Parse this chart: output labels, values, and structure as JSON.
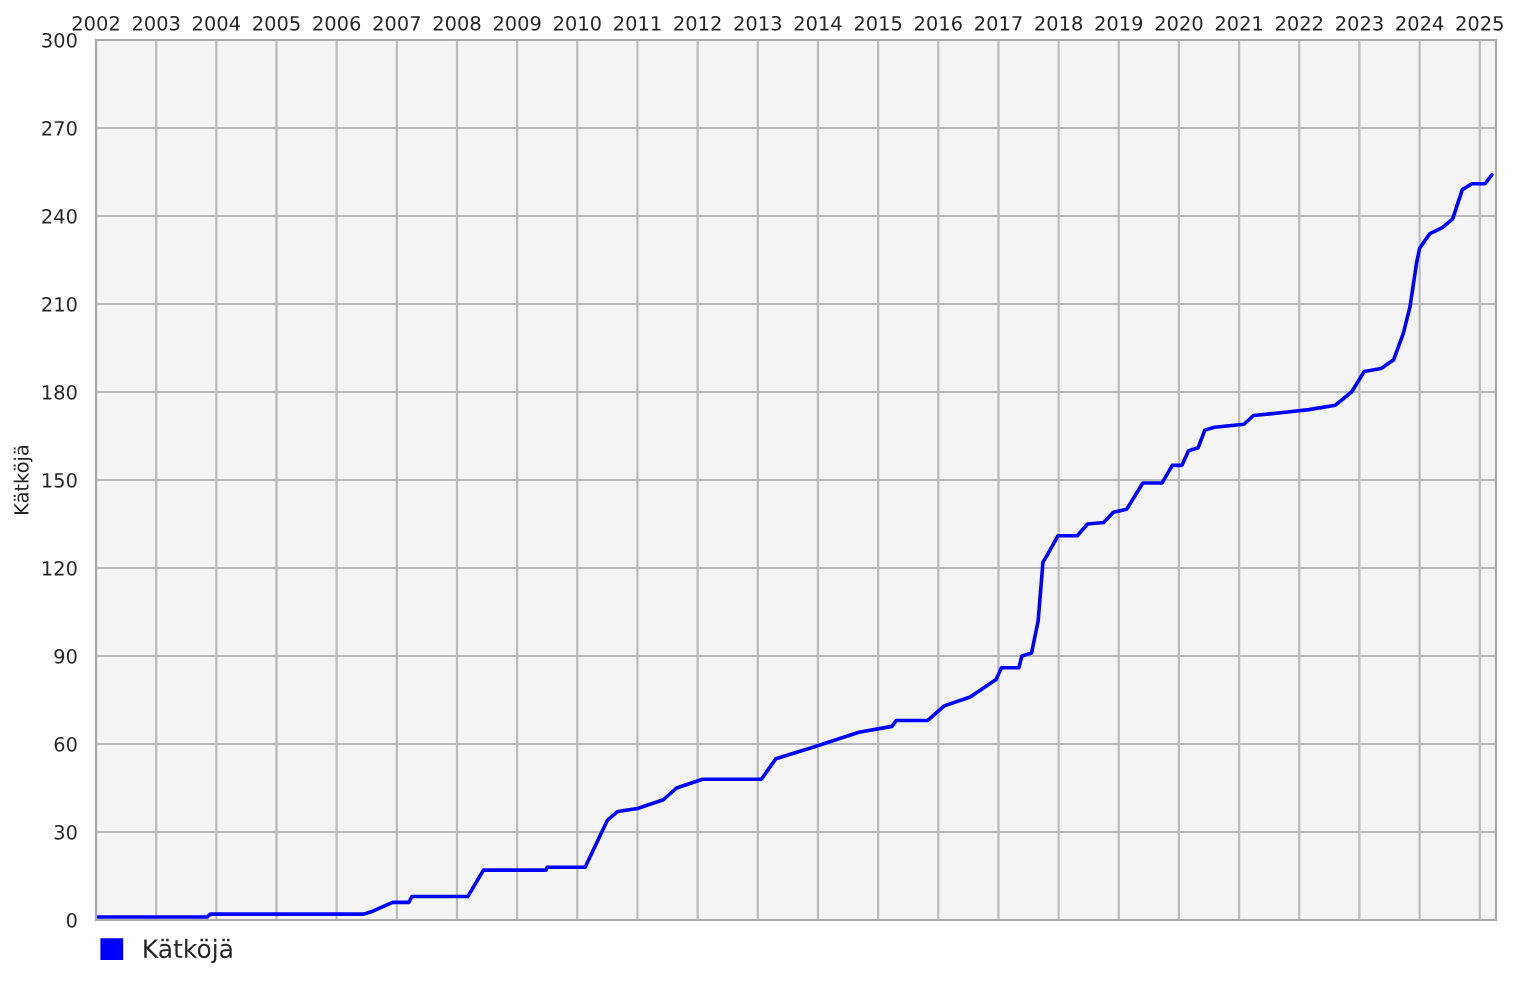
{
  "chart_data": {
    "type": "line",
    "ylabel": "Kätköjä",
    "xlim": [
      2002,
      2025.27
    ],
    "xticks": [
      2002,
      2003,
      2004,
      2005,
      2006,
      2007,
      2008,
      2009,
      2010,
      2011,
      2012,
      2013,
      2014,
      2015,
      2016,
      2017,
      2018,
      2019,
      2020,
      2021,
      2022,
      2023,
      2024,
      2025
    ],
    "ylim": [
      0,
      300
    ],
    "yticks": [
      0,
      30,
      60,
      90,
      120,
      150,
      180,
      210,
      240,
      270,
      300
    ],
    "grid": true,
    "legend": "bottom left",
    "marker": "none",
    "line_style": "solid",
    "series": [
      {
        "name": "Kätköjä",
        "color": "#0000ff",
        "x": [
          2002.0,
          2003.85,
          2003.9,
          2006.45,
          2006.6,
          2006.93,
          2007.2,
          2007.25,
          2008.18,
          2008.44,
          2009.48,
          2009.5,
          2010.13,
          2010.5,
          2010.67,
          2011.0,
          2011.43,
          2011.65,
          2012.08,
          2013.06,
          2013.3,
          2013.93,
          2014.68,
          2015.23,
          2015.3,
          2015.82,
          2016.1,
          2016.53,
          2016.96,
          2017.05,
          2017.34,
          2017.39,
          2017.55,
          2017.66,
          2017.74,
          2017.8,
          2017.99,
          2018.31,
          2018.48,
          2018.75,
          2018.91,
          2019.13,
          2019.4,
          2019.72,
          2019.89,
          2020.05,
          2020.16,
          2020.32,
          2020.43,
          2020.59,
          2021.08,
          2021.24,
          2021.73,
          2022.16,
          2022.6,
          2022.87,
          2023.08,
          2023.36,
          2023.57,
          2023.73,
          2023.84,
          2023.95,
          2024.0,
          2024.17,
          2024.38,
          2024.55,
          2024.71,
          2024.87,
          2025.09,
          2025.2
        ],
        "values": [
          1,
          1,
          2,
          2,
          3,
          6,
          6,
          8,
          8,
          17,
          17,
          18,
          18,
          34,
          37,
          38,
          41,
          45,
          48,
          48,
          55,
          59,
          64,
          66,
          68,
          68,
          73,
          76,
          82,
          86,
          86,
          90,
          91,
          102,
          122,
          124,
          131,
          131,
          135,
          135.5,
          139,
          140,
          149,
          149,
          155,
          155,
          160,
          161,
          167,
          168,
          169,
          172,
          173,
          174,
          175.5,
          180,
          187,
          188,
          191,
          200,
          209,
          224,
          229,
          234,
          236,
          239,
          249,
          251,
          251,
          254
        ]
      }
    ]
  }
}
